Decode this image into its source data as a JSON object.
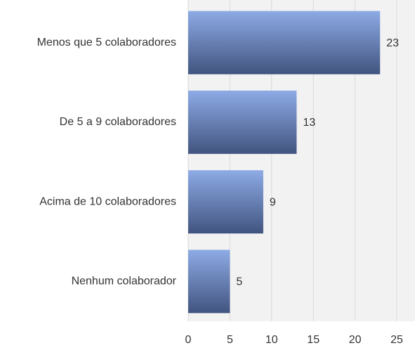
{
  "chart_data": {
    "type": "barh",
    "categories": [
      "Menos que 5 colaboradores",
      "De 5 a 9 colaboradores",
      "Acima de 10 colaboradores",
      "Nenhum colaborador"
    ],
    "values": [
      23,
      13,
      9,
      5
    ],
    "color": [
      "#8eabe6",
      "#41547f"
    ],
    "xlim": [
      0,
      25
    ],
    "xticks": [
      0,
      5,
      10,
      15,
      20,
      25
    ],
    "grid": true
  }
}
